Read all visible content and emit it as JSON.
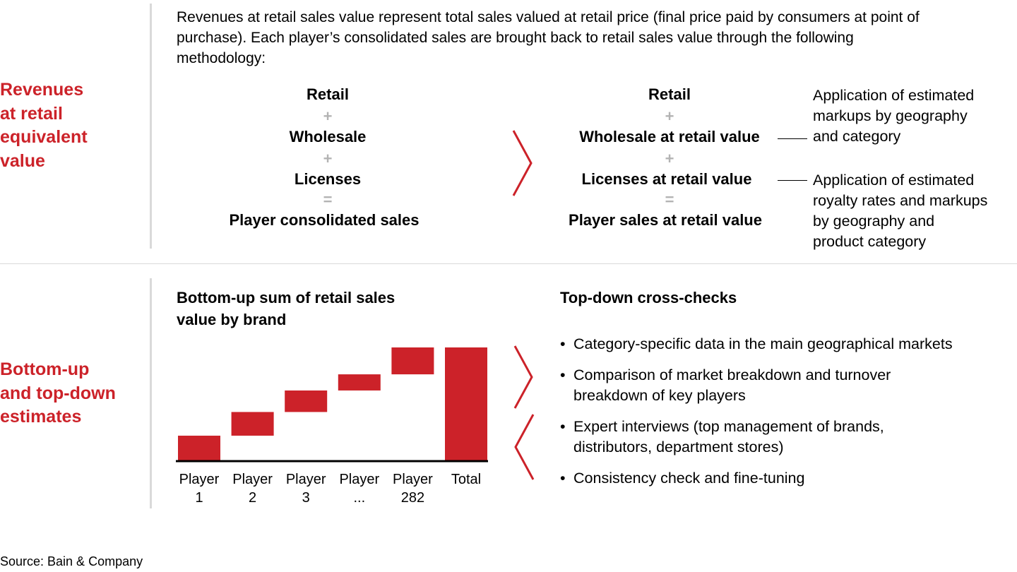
{
  "section1": {
    "label": "Revenues\nat retail\nequivalent\nvalue",
    "intro": "Revenues at retail sales value represent total sales valued at retail price (final price paid by consumers at point of purchase). Each player’s consolidated sales are brought back to retail sales value through the following methodology:",
    "left_formula": {
      "terms": [
        "Retail",
        "Wholesale",
        "Licenses",
        "Player consolidated sales"
      ],
      "ops": [
        "+",
        "+",
        "="
      ]
    },
    "right_formula": {
      "terms": [
        "Retail",
        "Wholesale at retail value",
        "Licenses at retail value",
        "Player sales at retail value"
      ],
      "ops": [
        "+",
        "+",
        "="
      ]
    },
    "notes": [
      "Application of estimated\nmarkups by geography\nand category",
      "Application of estimated\nroyalty rates and markups\nby geography and\nproduct category"
    ]
  },
  "section2": {
    "label": "Bottom-up\nand top-down\nestimates",
    "bottom_up_title": "Bottom-up sum of retail sales\nvalue by brand",
    "top_down_title": "Top-down cross-checks",
    "bullets": [
      "Category-specific data in the main geographical markets",
      "Comparison of market breakdown and turnover\nbreakdown of key players",
      "Expert interviews (top management of brands,\ndistributors, department stores)",
      "Consistency check and fine-tuning"
    ]
  },
  "chart_data": {
    "type": "bar",
    "subtype": "waterfall",
    "categories": [
      "Player\n1",
      "Player\n2",
      "Player\n3",
      "Player\n...",
      "Player\n282",
      "Total"
    ],
    "series": [
      {
        "values": [
          23,
          22,
          20,
          15,
          25,
          105
        ],
        "bases": [
          0,
          23,
          45,
          65,
          80,
          0
        ]
      }
    ],
    "ylim": [
      0,
      105
    ],
    "grid": false,
    "bar_color": "#cc2229"
  },
  "source": "Source: Bain & Company",
  "colors": {
    "accent": "#cc2229",
    "divider": "#d9d9d9",
    "operator": "#b3b3b3"
  }
}
